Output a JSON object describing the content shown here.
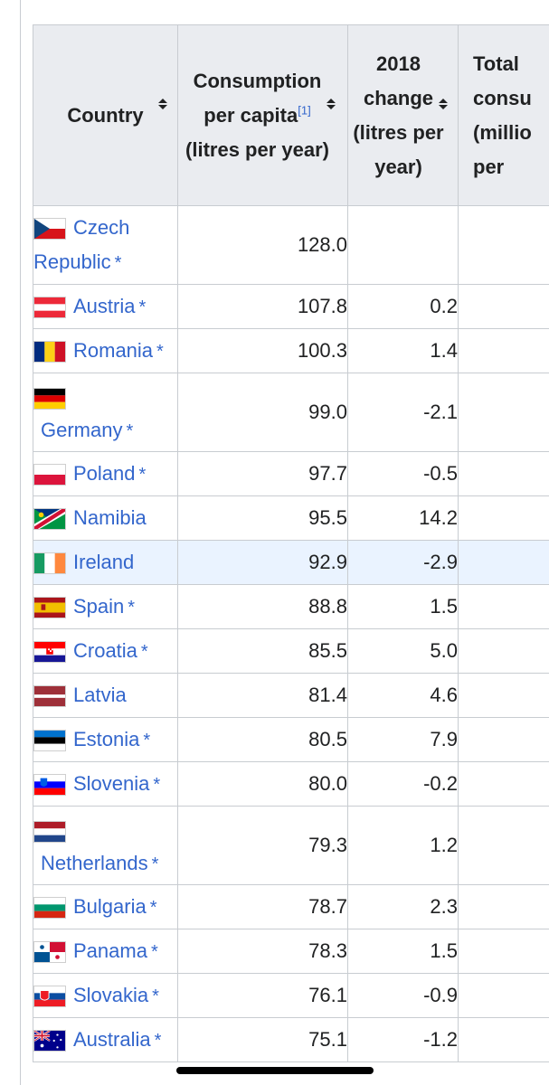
{
  "table": {
    "headers": {
      "country": "Country",
      "consumption": "Consumption per capita",
      "consumption_ref": "[1]",
      "consumption_unit": "(litres per year)",
      "change": "2018 change (litres per year)",
      "total": "Total consu (millio per"
    },
    "rows": [
      {
        "country": "Czech Republic",
        "line1": "Czech",
        "line2": "Republic",
        "star": "*",
        "consumption": "128.0",
        "change": "",
        "flag": "cz"
      },
      {
        "country": "Austria",
        "star": "*",
        "consumption": "107.8",
        "change": "0.2",
        "flag": "at"
      },
      {
        "country": "Romania",
        "star": "*",
        "consumption": "100.3",
        "change": "1.4",
        "flag": "ro"
      },
      {
        "country": "Germany",
        "star": "*",
        "consumption": "99.0",
        "change": "-2.1",
        "flag": "de"
      },
      {
        "country": "Poland",
        "star": "*",
        "consumption": "97.7",
        "change": "-0.5",
        "flag": "pl"
      },
      {
        "country": "Namibia",
        "star": "",
        "consumption": "95.5",
        "change": "14.2",
        "flag": "na"
      },
      {
        "country": "Ireland",
        "star": "",
        "consumption": "92.9",
        "change": "-2.9",
        "flag": "ie"
      },
      {
        "country": "Spain",
        "star": "*",
        "consumption": "88.8",
        "change": "1.5",
        "flag": "es"
      },
      {
        "country": "Croatia",
        "star": "*",
        "consumption": "85.5",
        "change": "5.0",
        "flag": "hr"
      },
      {
        "country": "Latvia",
        "star": "",
        "consumption": "81.4",
        "change": "4.6",
        "flag": "lv"
      },
      {
        "country": "Estonia",
        "star": "*",
        "consumption": "80.5",
        "change": "7.9",
        "flag": "ee"
      },
      {
        "country": "Slovenia",
        "star": "*",
        "consumption": "80.0",
        "change": "-0.2",
        "flag": "si"
      },
      {
        "country": "Netherlands",
        "star": "*",
        "consumption": "79.3",
        "change": "1.2",
        "flag": "nl"
      },
      {
        "country": "Bulgaria",
        "star": "*",
        "consumption": "78.7",
        "change": "2.3",
        "flag": "bg"
      },
      {
        "country": "Panama",
        "star": "*",
        "consumption": "78.3",
        "change": "1.5",
        "flag": "pa"
      },
      {
        "country": "Slovakia",
        "star": "*",
        "consumption": "76.1",
        "change": "-0.9",
        "flag": "sk"
      },
      {
        "country": "Australia",
        "star": "*",
        "consumption": "75.1",
        "change": "-1.2",
        "flag": "au"
      }
    ]
  },
  "colors": {
    "link": "#3366cc",
    "header_bg": "#eaecf0",
    "border": "#c8ccd1",
    "highlight_row": "#eaf3ff"
  }
}
